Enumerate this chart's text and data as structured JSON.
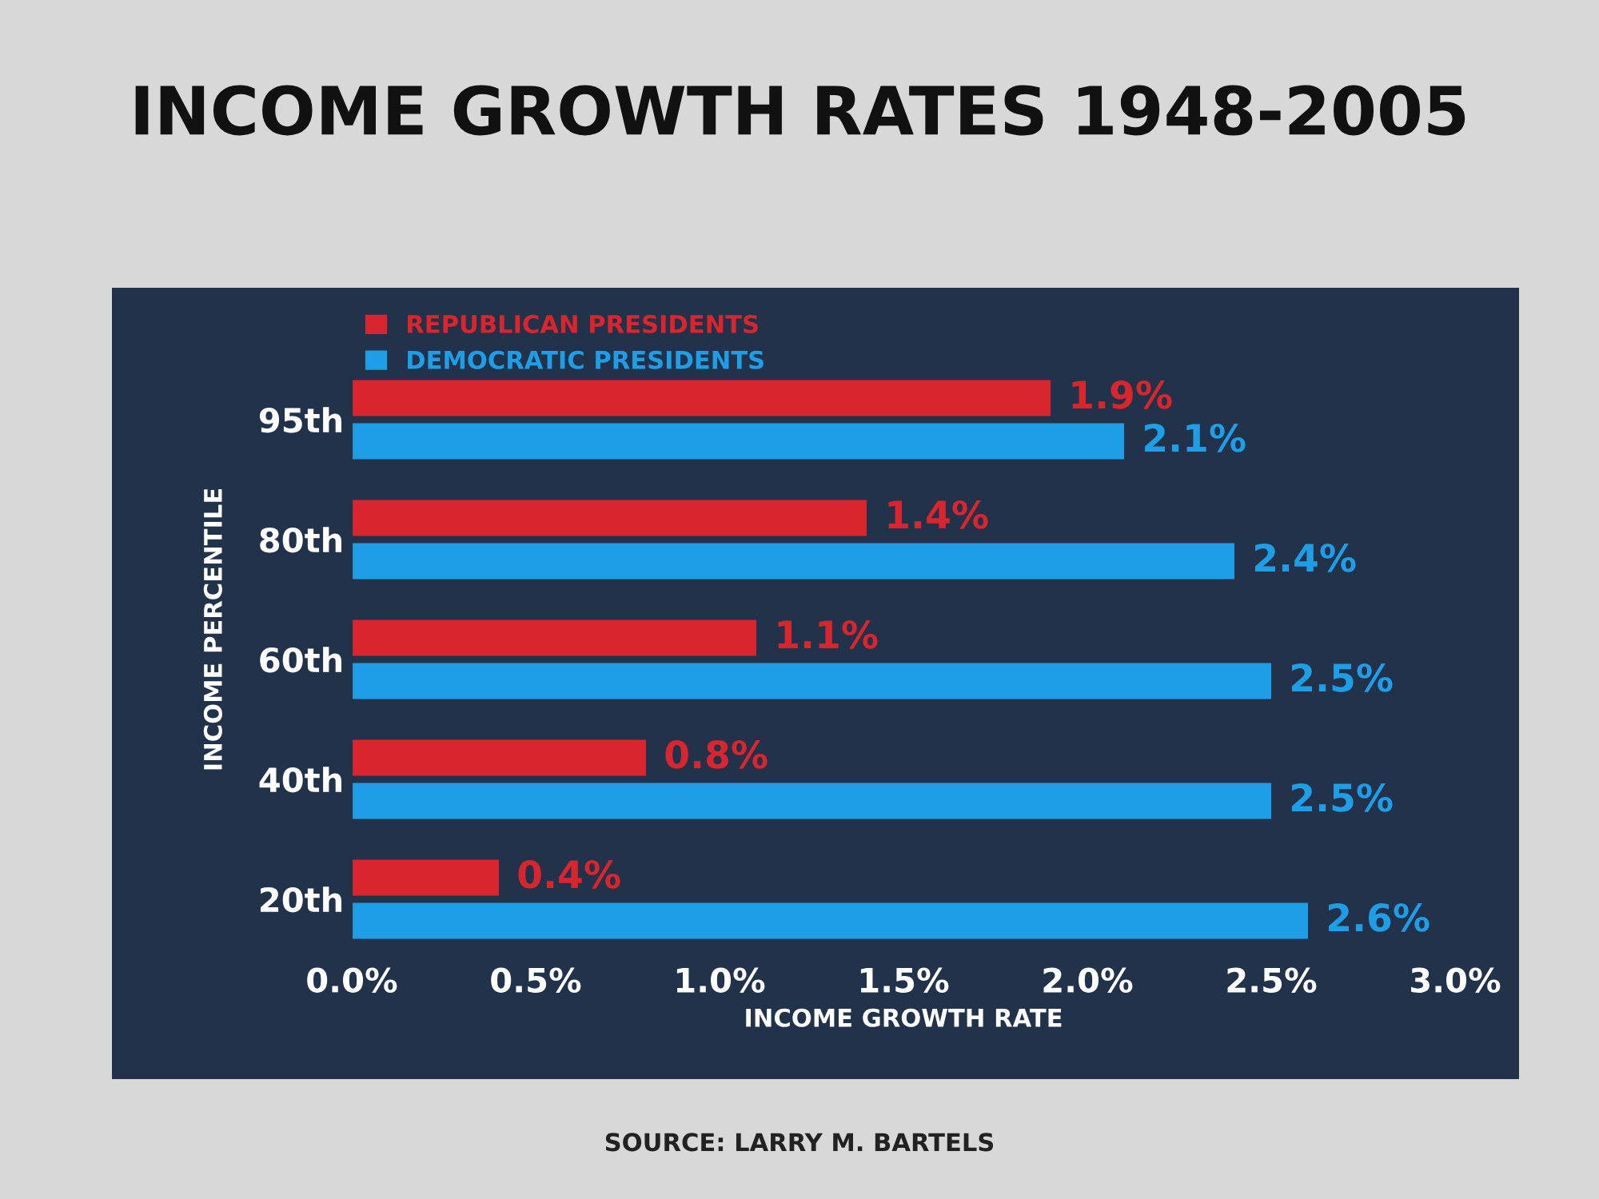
{
  "chart_data": {
    "type": "bar",
    "orientation": "horizontal",
    "title": "INCOME GROWTH RATES 1948-2005",
    "xlabel": "INCOME GROWTH RATE",
    "ylabel": "INCOME PERCENTILE",
    "categories": [
      "95th",
      "80th",
      "60th",
      "40th",
      "20th"
    ],
    "series": [
      {
        "name": "REPUBLICAN PRESIDENTS",
        "color": "#d9262e",
        "values": [
          1.9,
          1.4,
          1.1,
          0.8,
          0.4
        ],
        "value_labels": [
          "1.9%",
          "1.4%",
          "1.1%",
          "0.8%",
          "0.4%"
        ]
      },
      {
        "name": "DEMOCRATIC PRESIDENTS",
        "color": "#1e9ee6",
        "values": [
          2.1,
          2.4,
          2.5,
          2.5,
          2.6
        ],
        "value_labels": [
          "2.1%",
          "2.4%",
          "2.5%",
          "2.5%",
          "2.6%"
        ]
      }
    ],
    "xlim": [
      0,
      3
    ],
    "xticks": [
      {
        "value": 0,
        "label": "0.0%"
      },
      {
        "value": 0.5,
        "label": "0.5%"
      },
      {
        "value": 1,
        "label": "1.0%"
      },
      {
        "value": 1.5,
        "label": "1.5%"
      },
      {
        "value": 2,
        "label": "2.0%"
      },
      {
        "value": 2.5,
        "label": "2.5%"
      },
      {
        "value": 3,
        "label": "3.0%"
      }
    ],
    "legend": "top left",
    "grid": false,
    "annotations": [
      "SOURCE: LARRY M. BARTELS"
    ]
  }
}
